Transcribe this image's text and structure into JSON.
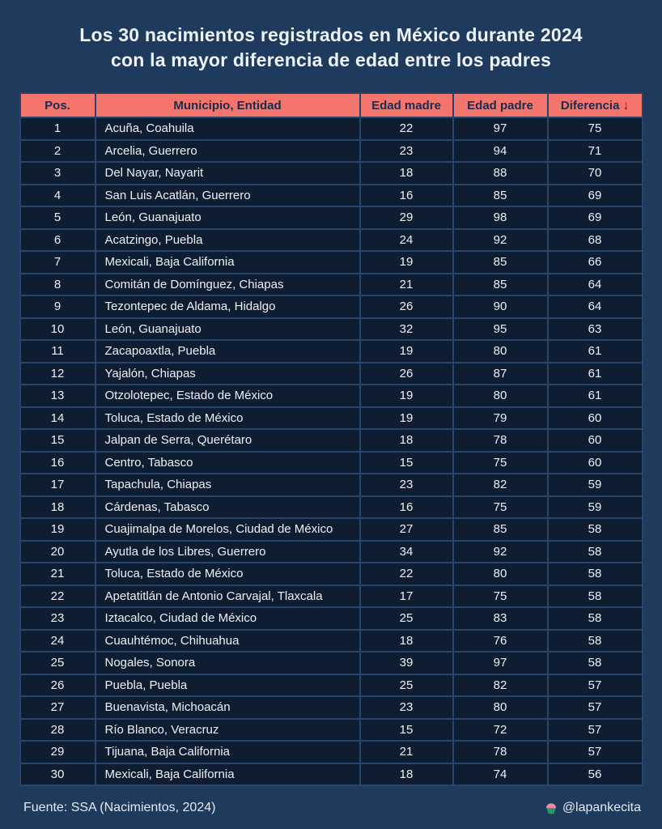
{
  "page": {
    "title_line1": "Los 30 nacimientos registrados en México durante 2024",
    "title_line2": "con la mayor diferencia de edad entre los padres"
  },
  "table": {
    "headers": [
      "Pos.",
      "Municipio, Entidad",
      "Edad madre",
      "Edad padre",
      "Diferencia ↓"
    ]
  },
  "chart_data": {
    "type": "table",
    "title": "Los 30 nacimientos registrados en México durante 2024 con la mayor diferencia de edad entre los padres",
    "columns": [
      "Pos.",
      "Municipio, Entidad",
      "Edad madre",
      "Edad padre",
      "Diferencia"
    ],
    "sort": "Diferencia descendente",
    "rows": [
      [
        1,
        "Acuña, Coahuila",
        22,
        97,
        75
      ],
      [
        2,
        "Arcelia, Guerrero",
        23,
        94,
        71
      ],
      [
        3,
        "Del Nayar, Nayarit",
        18,
        88,
        70
      ],
      [
        4,
        "San Luis Acatlán, Guerrero",
        16,
        85,
        69
      ],
      [
        5,
        "León, Guanajuato",
        29,
        98,
        69
      ],
      [
        6,
        "Acatzingo, Puebla",
        24,
        92,
        68
      ],
      [
        7,
        "Mexicali, Baja California",
        19,
        85,
        66
      ],
      [
        8,
        "Comitán de Domínguez, Chiapas",
        21,
        85,
        64
      ],
      [
        9,
        "Tezontepec de Aldama, Hidalgo",
        26,
        90,
        64
      ],
      [
        10,
        "León, Guanajuato",
        32,
        95,
        63
      ],
      [
        11,
        "Zacapoaxtla, Puebla",
        19,
        80,
        61
      ],
      [
        12,
        "Yajalón, Chiapas",
        26,
        87,
        61
      ],
      [
        13,
        "Otzolotepec, Estado de México",
        19,
        80,
        61
      ],
      [
        14,
        "Toluca, Estado de México",
        19,
        79,
        60
      ],
      [
        15,
        "Jalpan de Serra, Querétaro",
        18,
        78,
        60
      ],
      [
        16,
        "Centro, Tabasco",
        15,
        75,
        60
      ],
      [
        17,
        "Tapachula, Chiapas",
        23,
        82,
        59
      ],
      [
        18,
        "Cárdenas, Tabasco",
        16,
        75,
        59
      ],
      [
        19,
        "Cuajimalpa de Morelos, Ciudad de México",
        27,
        85,
        58
      ],
      [
        20,
        "Ayutla de los Libres, Guerrero",
        34,
        92,
        58
      ],
      [
        21,
        "Toluca, Estado de México",
        22,
        80,
        58
      ],
      [
        22,
        "Apetatitlán de Antonio Carvajal, Tlaxcala",
        17,
        75,
        58
      ],
      [
        23,
        "Iztacalco, Ciudad de México",
        25,
        83,
        58
      ],
      [
        24,
        "Cuauhtémoc, Chihuahua",
        18,
        76,
        58
      ],
      [
        25,
        "Nogales, Sonora",
        39,
        97,
        58
      ],
      [
        26,
        "Puebla, Puebla",
        25,
        82,
        57
      ],
      [
        27,
        "Buenavista, Michoacán",
        23,
        80,
        57
      ],
      [
        28,
        "Río Blanco, Veracruz",
        15,
        72,
        57
      ],
      [
        29,
        "Tijuana, Baja California",
        21,
        78,
        57
      ],
      [
        30,
        "Mexicali, Baja California",
        18,
        74,
        56
      ]
    ]
  },
  "footer": {
    "source": "Fuente: SSA (Nacimientos, 2024)",
    "credit": "@lapankecita",
    "credit_icon": "cupcake-icon"
  },
  "colors": {
    "background": "#1E3A5C",
    "header_bg": "#F4756B",
    "header_text": "#1B2B4D",
    "row_bg": "#0F1D33",
    "border": "#27456B",
    "text": "#EDF1F6",
    "cupcake_frosting": "#F28E9A",
    "cupcake_cup": "#2FA472"
  }
}
